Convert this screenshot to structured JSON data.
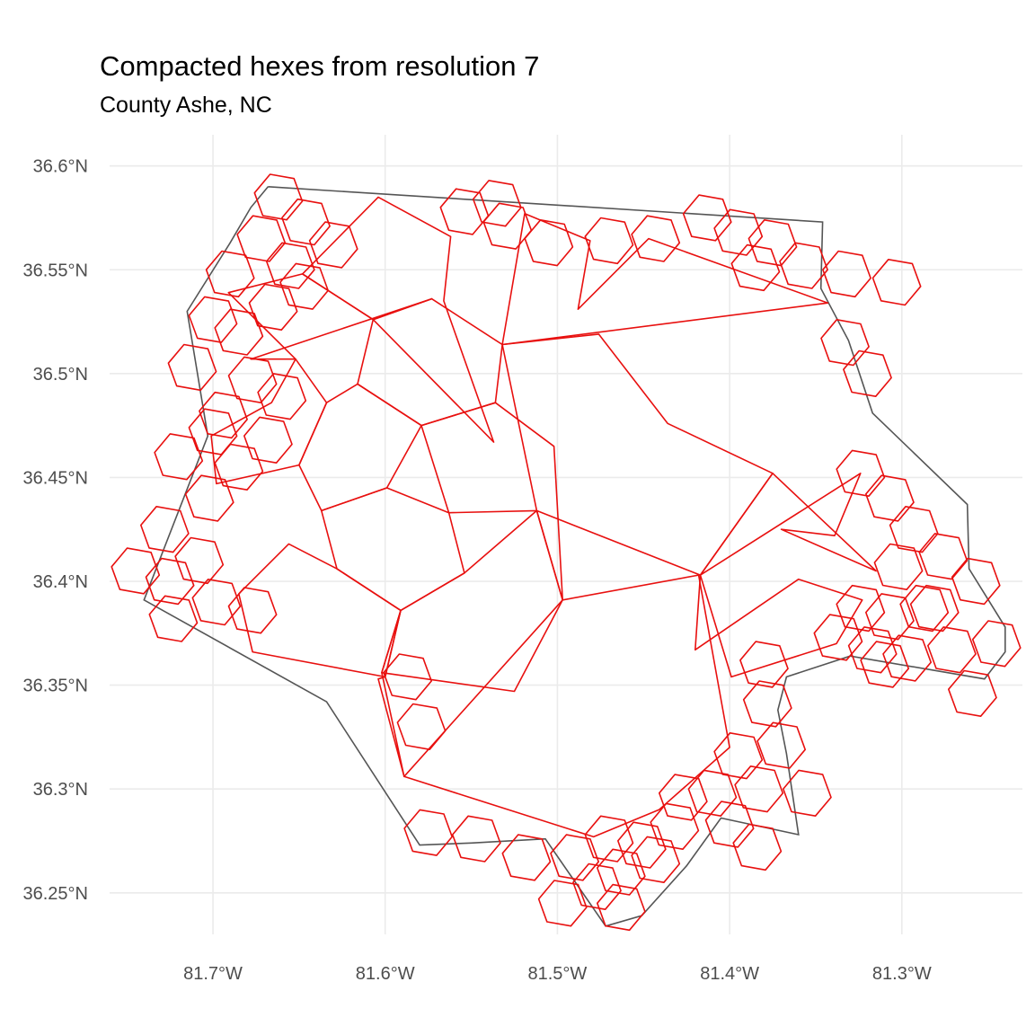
{
  "title": "Compacted hexes from resolution 7",
  "subtitle": "County Ashe, NC",
  "colors": {
    "hex_stroke": "#e8100f",
    "boundary_stroke": "#555555",
    "grid": "#ebebeb"
  },
  "chart_data": {
    "type": "map",
    "xlim": [
      -81.76,
      -81.23
    ],
    "ylim": [
      36.23,
      36.615
    ],
    "x_ticks": [
      {
        "value": -81.7,
        "label": "81.7°W"
      },
      {
        "value": -81.6,
        "label": "81.6°W"
      },
      {
        "value": -81.5,
        "label": "81.5°W"
      },
      {
        "value": -81.4,
        "label": "81.4°W"
      },
      {
        "value": -81.3,
        "label": "81.3°W"
      }
    ],
    "y_ticks": [
      {
        "value": 36.6,
        "label": "36.6°N"
      },
      {
        "value": 36.55,
        "label": "36.55°N"
      },
      {
        "value": 36.5,
        "label": "36.5°N"
      },
      {
        "value": 36.45,
        "label": "36.45°N"
      },
      {
        "value": 36.4,
        "label": "36.4°N"
      },
      {
        "value": 36.35,
        "label": "36.35°N"
      },
      {
        "value": 36.3,
        "label": "36.3°N"
      },
      {
        "value": 36.25,
        "label": "36.25°N"
      }
    ],
    "grid": true,
    "county_boundary": [
      [
        -81.668,
        36.59
      ],
      [
        -81.346,
        36.573
      ],
      [
        -81.347,
        36.541
      ],
      [
        -81.331,
        36.516
      ],
      [
        -81.317,
        36.481
      ],
      [
        -81.262,
        36.437
      ],
      [
        -81.261,
        36.406
      ],
      [
        -81.24,
        36.378
      ],
      [
        -81.24,
        36.366
      ],
      [
        -81.252,
        36.353
      ],
      [
        -81.33,
        36.364
      ],
      [
        -81.367,
        36.354
      ],
      [
        -81.372,
        36.338
      ],
      [
        -81.367,
        36.317
      ],
      [
        -81.36,
        36.278
      ],
      [
        -81.405,
        36.286
      ],
      [
        -81.425,
        36.263
      ],
      [
        -81.451,
        36.239
      ],
      [
        -81.472,
        36.234
      ],
      [
        -81.507,
        36.276
      ],
      [
        -81.55,
        36.274
      ],
      [
        -81.58,
        36.273
      ],
      [
        -81.634,
        36.342
      ],
      [
        -81.74,
        36.391
      ],
      [
        -81.703,
        36.47
      ],
      [
        -81.715,
        36.53
      ],
      [
        -81.69,
        36.563
      ],
      [
        -81.678,
        36.58
      ],
      [
        -81.668,
        36.59
      ]
    ],
    "large_hexes": [
      [
        [
          -81.532,
          36.514
        ],
        [
          -81.573,
          36.536
        ],
        [
          -81.607,
          36.526
        ],
        [
          -81.616,
          36.495
        ],
        [
          -81.579,
          36.475
        ],
        [
          -81.536,
          36.486
        ]
      ],
      [
        [
          -81.579,
          36.475
        ],
        [
          -81.616,
          36.495
        ],
        [
          -81.634,
          36.486
        ],
        [
          -81.65,
          36.456
        ],
        [
          -81.637,
          36.434
        ],
        [
          -81.599,
          36.445
        ]
      ],
      [
        [
          -81.637,
          36.434
        ],
        [
          -81.599,
          36.445
        ],
        [
          -81.563,
          36.433
        ],
        [
          -81.554,
          36.404
        ],
        [
          -81.591,
          36.386
        ],
        [
          -81.628,
          36.406
        ]
      ],
      [
        [
          -81.591,
          36.386
        ],
        [
          -81.554,
          36.404
        ],
        [
          -81.512,
          36.434
        ],
        [
          -81.497,
          36.391
        ],
        [
          -81.525,
          36.347
        ],
        [
          -81.602,
          36.356
        ]
      ],
      [
        [
          -81.512,
          36.434
        ],
        [
          -81.497,
          36.391
        ],
        [
          -81.502,
          36.465
        ],
        [
          -81.536,
          36.486
        ],
        [
          -81.579,
          36.475
        ],
        [
          -81.563,
          36.433
        ]
      ],
      [
        [
          -81.532,
          36.514
        ],
        [
          -81.512,
          36.434
        ],
        [
          -81.417,
          36.403
        ],
        [
          -81.375,
          36.452
        ],
        [
          -81.436,
          36.476
        ],
        [
          -81.476,
          36.519
        ]
      ],
      [
        [
          -81.417,
          36.403
        ],
        [
          -81.324,
          36.452
        ],
        [
          -81.339,
          36.422
        ],
        [
          -81.37,
          36.425
        ],
        [
          -81.315,
          36.405
        ],
        [
          -81.375,
          36.452
        ]
      ],
      [
        [
          -81.417,
          36.403
        ],
        [
          -81.399,
          36.354
        ],
        [
          -81.338,
          36.37
        ],
        [
          -81.323,
          36.391
        ],
        [
          -81.36,
          36.401
        ],
        [
          -81.42,
          36.367
        ]
      ],
      [
        [
          -81.537,
          36.467
        ],
        [
          -81.607,
          36.526
        ],
        [
          -81.648,
          36.548
        ],
        [
          -81.604,
          36.585
        ],
        [
          -81.562,
          36.566
        ],
        [
          -81.566,
          36.535
        ]
      ],
      [
        [
          -81.532,
          36.514
        ],
        [
          -81.519,
          36.577
        ],
        [
          -81.481,
          36.564
        ],
        [
          -81.488,
          36.531
        ],
        [
          -81.447,
          36.565
        ],
        [
          -81.343,
          36.534
        ]
      ],
      [
        [
          -81.591,
          36.386
        ],
        [
          -81.6,
          36.354
        ],
        [
          -81.677,
          36.366
        ],
        [
          -81.685,
          36.394
        ],
        [
          -81.656,
          36.418
        ],
        [
          -81.628,
          36.406
        ]
      ],
      [
        [
          -81.666,
          36.486
        ],
        [
          -81.701,
          36.47
        ],
        [
          -81.698,
          36.447
        ],
        [
          -81.65,
          36.456
        ],
        [
          -81.634,
          36.486
        ],
        [
          -81.652,
          36.507
        ]
      ],
      [
        [
          -81.678,
          36.507
        ],
        [
          -81.652,
          36.507
        ],
        [
          -81.691,
          36.539
        ],
        [
          -81.648,
          36.548
        ],
        [
          -81.607,
          36.526
        ],
        [
          -81.573,
          36.536
        ]
      ],
      [
        [
          -81.602,
          36.356
        ],
        [
          -81.591,
          36.386
        ],
        [
          -81.6,
          36.354
        ],
        [
          -81.604,
          36.353
        ],
        [
          -81.589,
          36.306
        ],
        [
          -81.589,
          36.306
        ]
      ],
      [
        [
          -81.589,
          36.306
        ],
        [
          -81.479,
          36.277
        ],
        [
          -81.441,
          36.29
        ],
        [
          -81.4,
          36.32
        ],
        [
          -81.418,
          36.403
        ],
        [
          -81.497,
          36.391
        ]
      ]
    ],
    "small_hexes": [
      [
        -81.662,
        36.585
      ],
      [
        -81.646,
        36.573
      ],
      [
        -81.63,
        36.562
      ],
      [
        -81.672,
        36.565
      ],
      [
        -81.655,
        36.552
      ],
      [
        -81.69,
        36.548
      ],
      [
        -81.647,
        36.542
      ],
      [
        -81.7,
        36.526
      ],
      [
        -81.665,
        36.532
      ],
      [
        -81.685,
        36.52
      ],
      [
        -81.712,
        36.503
      ],
      [
        -81.677,
        36.497
      ],
      [
        -81.694,
        36.48
      ],
      [
        -81.66,
        36.489
      ],
      [
        -81.668,
        36.468
      ],
      [
        -81.7,
        36.472
      ],
      [
        -81.685,
        36.455
      ],
      [
        -81.72,
        36.46
      ],
      [
        -81.702,
        36.44
      ],
      [
        -81.728,
        36.425
      ],
      [
        -81.745,
        36.405
      ],
      [
        -81.725,
        36.4
      ],
      [
        -81.708,
        36.41
      ],
      [
        -81.698,
        36.39
      ],
      [
        -81.723,
        36.382
      ],
      [
        -81.677,
        36.386
      ],
      [
        -81.554,
        36.578
      ],
      [
        -81.529,
        36.571
      ],
      [
        -81.535,
        36.582
      ],
      [
        -81.505,
        36.563
      ],
      [
        -81.47,
        36.564
      ],
      [
        -81.443,
        36.565
      ],
      [
        -81.413,
        36.575
      ],
      [
        -81.395,
        36.568
      ],
      [
        -81.385,
        36.551
      ],
      [
        -81.375,
        36.563
      ],
      [
        -81.357,
        36.552
      ],
      [
        -81.332,
        36.548
      ],
      [
        -81.303,
        36.544
      ],
      [
        -81.333,
        36.515
      ],
      [
        -81.32,
        36.5
      ],
      [
        -81.324,
        36.452
      ],
      [
        -81.307,
        36.44
      ],
      [
        -81.293,
        36.425
      ],
      [
        -81.276,
        36.412
      ],
      [
        -81.302,
        36.407
      ],
      [
        -81.287,
        36.387
      ],
      [
        -81.257,
        36.4
      ],
      [
        -81.324,
        36.387
      ],
      [
        -81.307,
        36.383
      ],
      [
        -81.281,
        36.387
      ],
      [
        -81.337,
        36.373
      ],
      [
        -81.317,
        36.367
      ],
      [
        -81.297,
        36.363
      ],
      [
        -81.271,
        36.367
      ],
      [
        -81.245,
        36.37
      ],
      [
        -81.259,
        36.346
      ],
      [
        -81.31,
        36.36
      ],
      [
        -81.38,
        36.36
      ],
      [
        -81.378,
        36.341
      ],
      [
        -81.395,
        36.316
      ],
      [
        -81.37,
        36.321
      ],
      [
        -81.41,
        36.298
      ],
      [
        -81.383,
        36.3
      ],
      [
        -81.355,
        36.298
      ],
      [
        -81.427,
        36.296
      ],
      [
        -81.4,
        36.283
      ],
      [
        -81.384,
        36.272
      ],
      [
        -81.432,
        36.282
      ],
      [
        -81.451,
        36.273
      ],
      [
        -81.47,
        36.276
      ],
      [
        -81.49,
        36.267
      ],
      [
        -81.463,
        36.26
      ],
      [
        -81.443,
        36.266
      ],
      [
        -81.477,
        36.253
      ],
      [
        -81.463,
        36.243
      ],
      [
        -81.497,
        36.245
      ],
      [
        -81.518,
        36.267
      ],
      [
        -81.547,
        36.276
      ],
      [
        -81.575,
        36.279
      ],
      [
        -81.587,
        36.354
      ],
      [
        -81.579,
        36.33
      ]
    ]
  }
}
